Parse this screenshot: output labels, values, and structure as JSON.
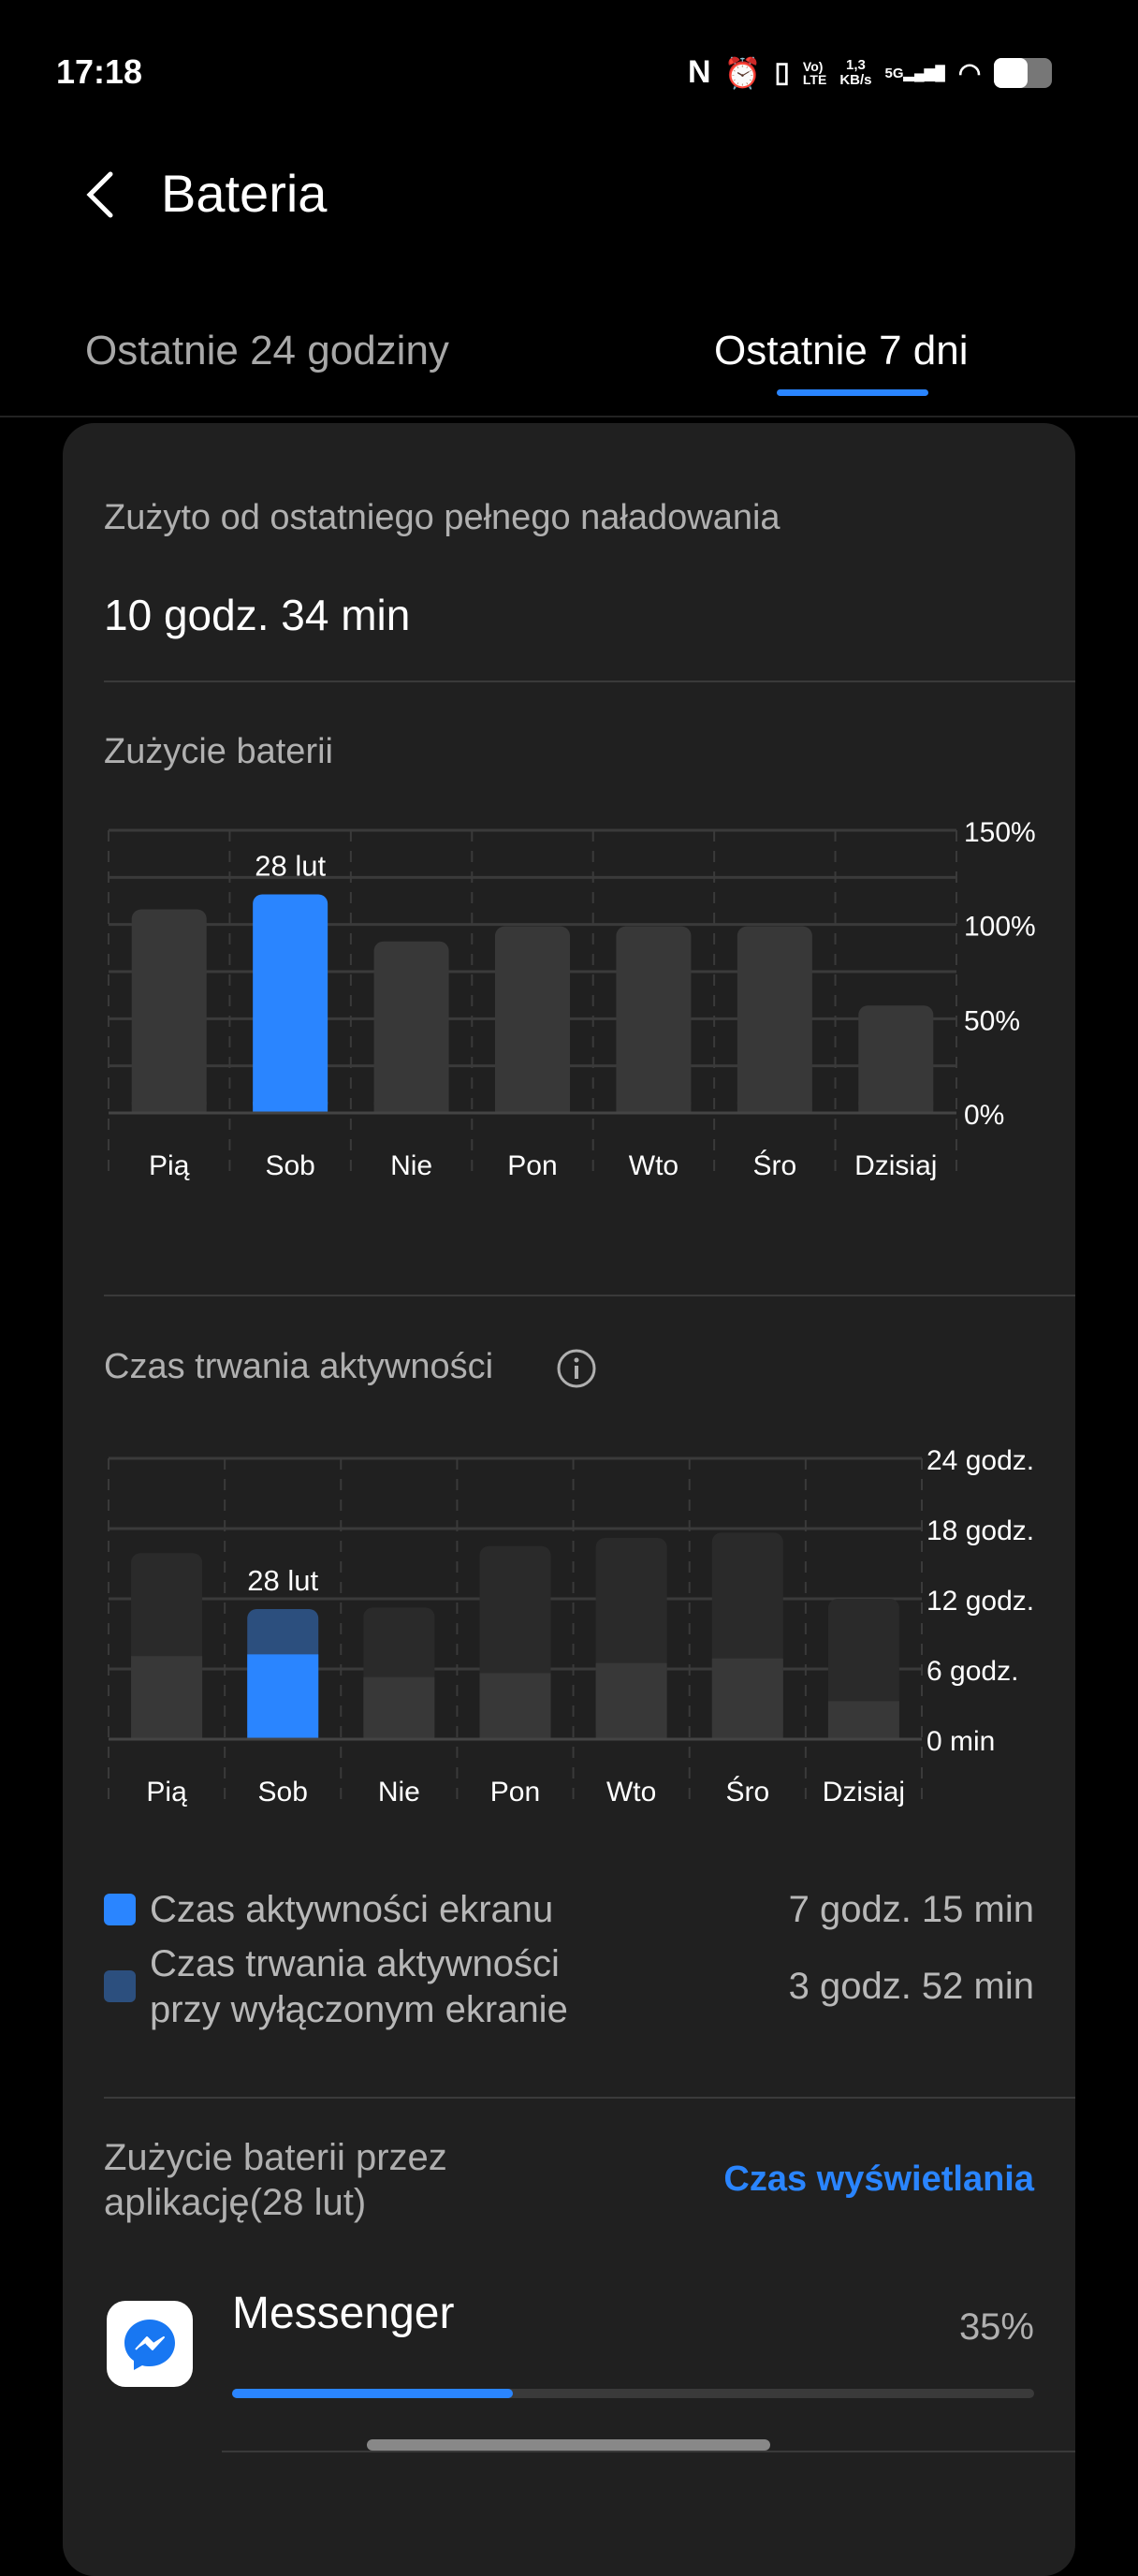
{
  "status_bar": {
    "time": "17:18",
    "net_speed": "1,3\nKB/s",
    "network": "5G",
    "icons": [
      "nfc-icon",
      "alarm-icon",
      "vibrate-icon",
      "volte-icon",
      "signal-icon",
      "wifi-icon",
      "battery-icon"
    ]
  },
  "header": {
    "title": "Bateria"
  },
  "tabs": [
    {
      "label": "Ostatnie 24 godziny",
      "active": false
    },
    {
      "label": "Ostatnie 7 dni",
      "active": true
    }
  ],
  "summary": {
    "label": "Zużyto od ostatniego pełnego naładowania",
    "value": "10 godz. 34 min"
  },
  "colors": {
    "accent": "#2a85ff",
    "accent_dark": "#2c4f7e",
    "bar": "#383838",
    "bar_bg": "#2a2a2a",
    "card": "#202020"
  },
  "chart_data": [
    {
      "type": "bar",
      "title": "Zużycie baterii",
      "categories": [
        "Pią",
        "Sob",
        "Nie",
        "Pon",
        "Wto",
        "Śro",
        "Dzisiaj"
      ],
      "values": [
        108,
        116,
        91,
        99,
        99,
        99,
        57
      ],
      "unit": "%",
      "ylim": [
        0,
        150
      ],
      "yticks": [
        "150%",
        "100%",
        "50%",
        "0%"
      ],
      "selected_index": 1,
      "selected_label": "28 lut",
      "grid": true
    },
    {
      "type": "bar",
      "stacked": true,
      "title": "Czas trwania aktywności",
      "categories": [
        "Pią",
        "Sob",
        "Nie",
        "Pon",
        "Wto",
        "Śro",
        "Dzisiaj"
      ],
      "series": [
        {
          "name": "Czas aktywności ekranu",
          "values": [
            7.1,
            7.25,
            5.3,
            5.65,
            6.5,
            6.9,
            3.25
          ]
        },
        {
          "name": "Czas trwania aktywności przy wyłączonym ekranie",
          "values": [
            8.8,
            3.87,
            5.95,
            10.85,
            10.7,
            10.75,
            8.75
          ]
        }
      ],
      "unit": "godz.",
      "ylim": [
        0,
        24
      ],
      "yticks": [
        "24 godz.",
        "18 godz.",
        "12 godz.",
        "6 godz.",
        "0 min"
      ],
      "selected_index": 1,
      "selected_label": "28 lut",
      "grid": true
    }
  ],
  "legend": [
    {
      "label": "Czas aktywności ekranu",
      "value": "7 godz. 15 min"
    },
    {
      "label_line1": "Czas trwania aktywności",
      "label_line2": "przy wyłączonym ekranie",
      "value": "3 godz. 52 min"
    }
  ],
  "apps_section": {
    "title_line1": "Zużycie baterii przez",
    "title_line2": "aplikację(28 lut)",
    "sort_button": "Czas wyświetlania",
    "apps": [
      {
        "name": "Messenger",
        "percent": "35%",
        "fraction": 0.35
      }
    ]
  }
}
